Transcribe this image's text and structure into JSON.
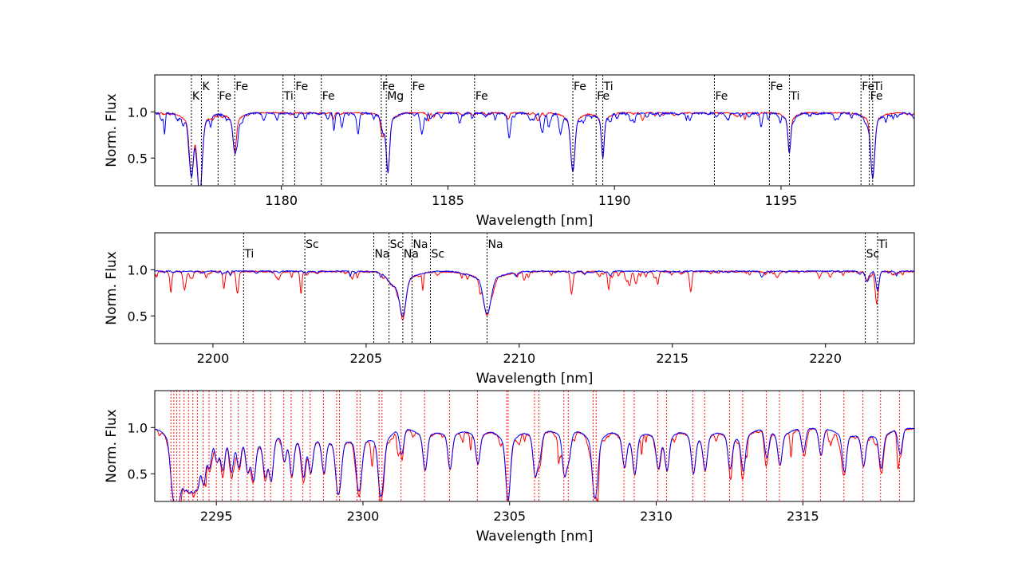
{
  "chart_data": [
    {
      "type": "line",
      "xlabel": "Wavelength [nm]",
      "ylabel": "Norm. Flux",
      "xlim": [
        1176.2,
        1199.0
      ],
      "ylim": [
        0.2,
        1.4
      ],
      "xticks": [
        1180,
        1185,
        1190,
        1195
      ],
      "yticks": [
        0.5,
        1.0
      ],
      "line_marker_color": "#000000",
      "line_marker_style": "dotted",
      "line_marker_label_placement": "alternating-top",
      "series": [
        {
          "color": "#ff0000",
          "continuum": 0.99,
          "noise_amp": 0.012,
          "noise_lines": 0.025
        },
        {
          "color": "#0000ff",
          "continuum": 0.985,
          "noise_amp": 0.02,
          "noise_lines": 0.08
        }
      ],
      "absorption_features": [
        {
          "x": 1177.3,
          "depth": 0.55,
          "width": 0.06
        },
        {
          "x": 1177.55,
          "depth": 0.75,
          "width": 0.07
        },
        {
          "x": 1178.6,
          "depth": 0.32,
          "width": 0.05
        },
        {
          "x": 1183.2,
          "depth": 0.55,
          "width": 0.05
        },
        {
          "x": 1183.05,
          "depth": 0.15,
          "width": 0.05
        },
        {
          "x": 1188.75,
          "depth": 0.55,
          "width": 0.06
        },
        {
          "x": 1189.65,
          "depth": 0.4,
          "width": 0.04
        },
        {
          "x": 1195.25,
          "depth": 0.35,
          "width": 0.04
        },
        {
          "x": 1197.75,
          "depth": 0.62,
          "width": 0.06
        }
      ],
      "spectral_lines": [
        {
          "x": 1177.3,
          "label": "K"
        },
        {
          "x": 1177.6,
          "label": "K"
        },
        {
          "x": 1178.1,
          "label": "Fe"
        },
        {
          "x": 1178.6,
          "label": "Fe"
        },
        {
          "x": 1180.05,
          "label": "Ti"
        },
        {
          "x": 1180.4,
          "label": "Fe"
        },
        {
          "x": 1181.2,
          "label": "Fe"
        },
        {
          "x": 1183.0,
          "label": "Fe"
        },
        {
          "x": 1183.15,
          "label": "Mg"
        },
        {
          "x": 1183.9,
          "label": "Fe"
        },
        {
          "x": 1185.8,
          "label": "Fe"
        },
        {
          "x": 1188.75,
          "label": "Fe"
        },
        {
          "x": 1189.45,
          "label": "Fe"
        },
        {
          "x": 1189.65,
          "label": "Ti"
        },
        {
          "x": 1193.0,
          "label": "Fe"
        },
        {
          "x": 1194.65,
          "label": "Fe"
        },
        {
          "x": 1195.25,
          "label": "Ti"
        },
        {
          "x": 1197.4,
          "label": "Fe"
        },
        {
          "x": 1197.65,
          "label": "Fe"
        },
        {
          "x": 1197.75,
          "label": "Ti"
        }
      ]
    },
    {
      "type": "line",
      "xlabel": "Wavelength [nm]",
      "ylabel": "Norm. Flux",
      "xlim": [
        2198.1,
        2222.9
      ],
      "ylim": [
        0.2,
        1.4
      ],
      "xticks": [
        2200,
        2205,
        2210,
        2215,
        2220
      ],
      "yticks": [
        0.5,
        1.0
      ],
      "line_marker_color": "#000000",
      "line_marker_style": "dotted",
      "line_marker_label_placement": "alternating-top",
      "series": [
        {
          "color": "#ff0000",
          "continuum": 0.98,
          "noise_amp": 0.015,
          "noise_lines": 0.07
        },
        {
          "color": "#0000ff",
          "continuum": 0.985,
          "noise_amp": 0.01,
          "noise_lines": 0.02
        }
      ],
      "absorption_features": [
        {
          "x": 2205.9,
          "depth": 0.1,
          "width": 0.18
        },
        {
          "x": 2206.2,
          "depth": 0.38,
          "width": 0.1
        },
        {
          "x": 2208.95,
          "depth": 0.38,
          "width": 0.12
        },
        {
          "x": 2221.7,
          "depth": 0.2,
          "width": 0.05
        },
        {
          "x": 2221.35,
          "depth": 0.1,
          "width": 0.05
        }
      ],
      "spectral_lines": [
        {
          "x": 2201.0,
          "label": "Ti"
        },
        {
          "x": 2203.0,
          "label": "Sc"
        },
        {
          "x": 2205.25,
          "label": "Na"
        },
        {
          "x": 2205.75,
          "label": "Sc"
        },
        {
          "x": 2206.2,
          "label": "Na"
        },
        {
          "x": 2206.5,
          "label": "Na"
        },
        {
          "x": 2207.1,
          "label": "Sc"
        },
        {
          "x": 2208.95,
          "label": "Na"
        },
        {
          "x": 2221.3,
          "label": "Sc"
        },
        {
          "x": 2221.7,
          "label": "Ti"
        }
      ]
    },
    {
      "type": "line",
      "xlabel": "Wavelength [nm]",
      "ylabel": "Norm. Flux",
      "xlim": [
        2292.9,
        2318.8
      ],
      "ylim": [
        0.2,
        1.4
      ],
      "xticks": [
        2295,
        2300,
        2305,
        2310,
        2315
      ],
      "yticks": [
        0.5,
        1.0
      ],
      "line_marker_color": "#ff0000",
      "line_marker_style": "dotted",
      "series": [
        {
          "color": "#ff0000",
          "continuum": 0.985,
          "noise_amp": 0.015,
          "noise_lines": 0.08
        },
        {
          "color": "#0000ff",
          "continuum": 0.99,
          "noise_amp": 0.008,
          "noise_lines": 0.0
        }
      ],
      "co_bandhead": 2293.5,
      "co_line_depth": 0.42,
      "co_line_width": 0.07,
      "marker_lines": [
        2293.45,
        2293.55,
        2293.65,
        2293.75,
        2293.9,
        2294.05,
        2294.2,
        2294.35,
        2294.55,
        2294.75,
        2295.0,
        2295.2,
        2295.5,
        2295.75,
        2296.05,
        2296.25,
        2296.65,
        2296.85,
        2297.3,
        2297.55,
        2297.95,
        2298.2,
        2298.65,
        2299.1,
        2299.2,
        2299.8,
        2299.9,
        2300.55,
        2300.65,
        2301.3,
        2302.1,
        2302.95,
        2303.9,
        2304.9,
        2304.95,
        2305.85,
        2306.0,
        2306.85,
        2307.0,
        2307.85,
        2307.95,
        2308.9,
        2309.25,
        2310.05,
        2310.35,
        2311.25,
        2311.65,
        2312.5,
        2312.95,
        2313.75,
        2314.2,
        2315.0,
        2315.6,
        2316.4,
        2317.05,
        2317.65,
        2318.3
      ]
    }
  ]
}
